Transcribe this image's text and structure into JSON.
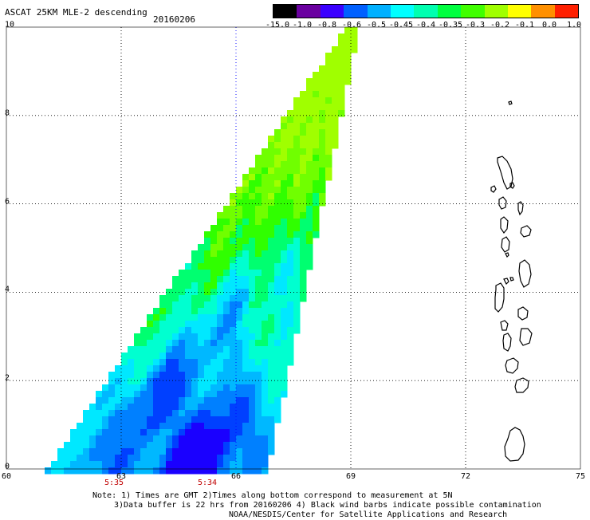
{
  "header": {
    "title": "ASCAT 25KM MLE-2 descending",
    "date": "20160206"
  },
  "colorbar": {
    "labels": [
      "-15.0",
      "-1.0",
      "-0.8",
      "-0.6",
      "-0.5",
      "-0.45",
      "-0.4",
      "-0.35",
      "-0.3",
      "-0.2",
      "-0.1",
      "0.0",
      "1.0"
    ],
    "colors": [
      "#000000",
      "#6a00a0",
      "#3a00ff",
      "#0060ff",
      "#00b0ff",
      "#00ffff",
      "#00ffb0",
      "#00ff40",
      "#40ff00",
      "#a0ff00",
      "#ffff00",
      "#ff9000",
      "#ff2000"
    ]
  },
  "axes": {
    "x_ticks": [
      "60",
      "63",
      "66",
      "69",
      "72",
      "75"
    ],
    "y_ticks": [
      "0",
      "2",
      "4",
      "6",
      "8",
      "10"
    ],
    "xlim": [
      60,
      75
    ],
    "ylim": [
      0,
      10
    ]
  },
  "times": [
    "5:35",
    "5:34"
  ],
  "notes": {
    "line1": "Note: 1) Times are GMT 2)Times along bottom correspond to measurement at 5N",
    "line2": "3)Data buffer is 22 hrs from 20160206 4) Black wind barbs indicate possible contamination",
    "line3": "NOAA/NESDIS/Center for Satellite Applications and Research"
  },
  "map_colors": {
    "background": "#ffffff",
    "coast": "#000000",
    "grid": "#000000",
    "grid_accent": "#0000ff"
  }
}
